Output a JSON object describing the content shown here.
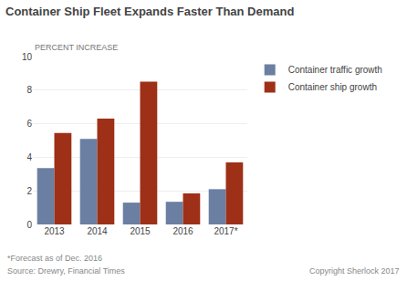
{
  "chart_data": {
    "type": "bar",
    "title": "Container Ship Fleet Expands Faster Than Demand",
    "ylabel": "PERCENT INCREASE",
    "categories": [
      "2013",
      "2014",
      "2015",
      "2016",
      "2017*"
    ],
    "series": [
      {
        "name": "Container traffic growth",
        "color": "#6b7fa3",
        "values": [
          3.35,
          5.1,
          1.3,
          1.35,
          2.1
        ]
      },
      {
        "name": "Container ship growth",
        "color": "#9e3018",
        "values": [
          5.45,
          6.3,
          8.5,
          1.85,
          3.7
        ]
      }
    ],
    "ylim": [
      0,
      10
    ],
    "yticks": [
      0,
      2,
      4,
      6,
      8,
      10
    ],
    "grid": true,
    "legend": "upper right",
    "annotations": [
      "*Forecast as of Dec. 2016",
      "Source: Drewry, Financial Times",
      "Copyright Sherlock 2017"
    ]
  }
}
